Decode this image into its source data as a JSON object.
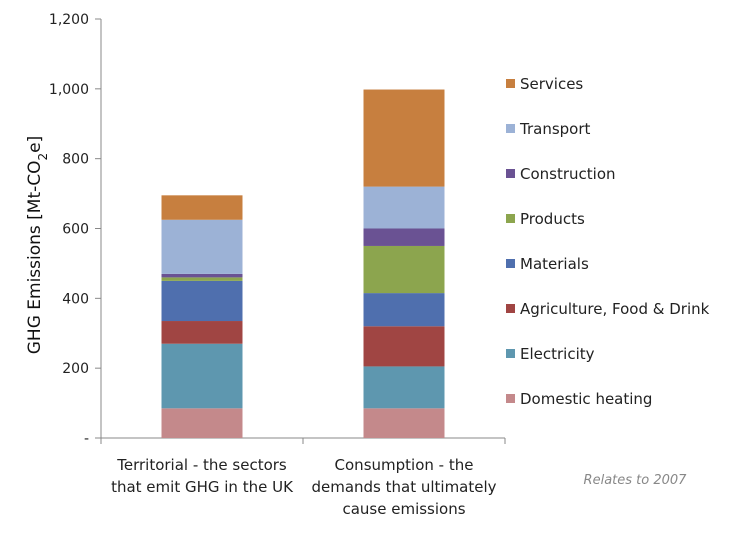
{
  "chart_data": {
    "type": "bar",
    "stacked": true,
    "categories": [
      [
        "Territorial - the sectors",
        "that emit GHG in the UK"
      ],
      [
        "Consumption - the",
        "demands that ultimately",
        "cause emissions"
      ]
    ],
    "series": [
      {
        "name": "Domestic heating",
        "color": "#C4898B",
        "values": [
          85,
          85
        ]
      },
      {
        "name": "Electricity",
        "color": "#5E97AF",
        "values": [
          185,
          120
        ]
      },
      {
        "name": "Agriculture, Food & Drink",
        "color": "#A04543",
        "values": [
          65,
          115
        ]
      },
      {
        "name": "Materials",
        "color": "#4F6FAE",
        "values": [
          115,
          95
        ]
      },
      {
        "name": "Products",
        "color": "#8CA54E",
        "values": [
          10,
          135
        ]
      },
      {
        "name": "Construction",
        "color": "#6A5293",
        "values": [
          10,
          50
        ]
      },
      {
        "name": "Transport",
        "color": "#9CB2D6",
        "values": [
          155,
          120
        ]
      },
      {
        "name": "Services",
        "color": "#C77F3F",
        "values": [
          70,
          278
        ]
      }
    ],
    "ylabel": "GHG Emissions [Mt-CO2e]",
    "ylim": [
      0,
      1200
    ],
    "yticks": [
      "-",
      "200",
      "400",
      "600",
      "800",
      "1,000",
      "1,200"
    ],
    "ytick_values": [
      0,
      200,
      400,
      600,
      800,
      1000,
      1200
    ],
    "legend_order": [
      "Services",
      "Transport",
      "Construction",
      "Products",
      "Materials",
      "Agriculture, Food & Drink",
      "Electricity",
      "Domestic heating"
    ],
    "legend_position": "right",
    "grid": false
  },
  "note": "Relates to 2007"
}
